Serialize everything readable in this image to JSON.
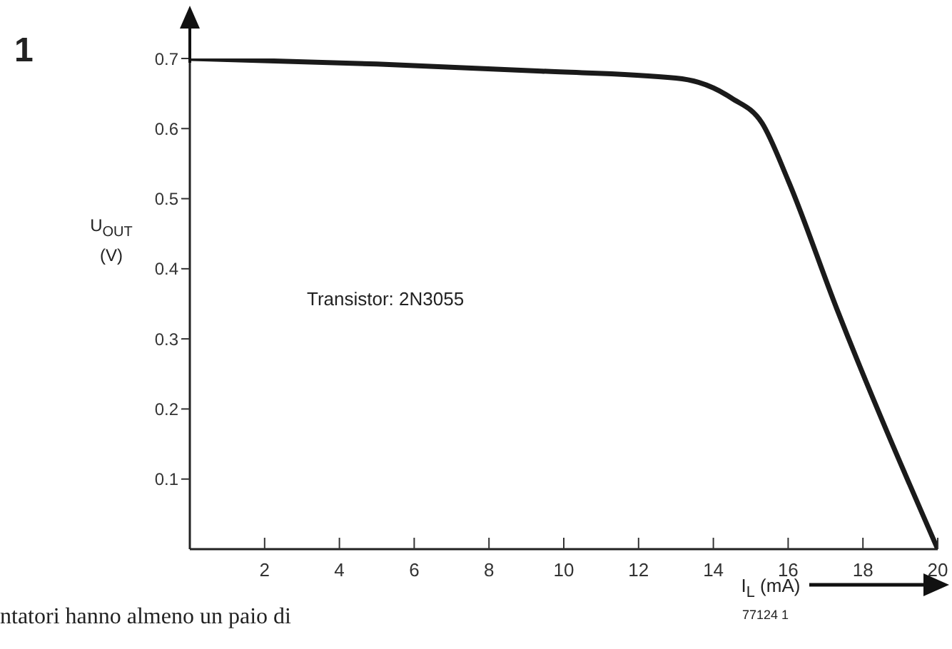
{
  "chart_data": {
    "type": "line",
    "xlabel": "I$_{L}$ (mA)",
    "ylabel": "U$_{OUT}$ (V)",
    "annotations": [
      "1",
      "Transistor: 2N3055",
      "77124 1",
      "ntatori hanno almeno un paio di"
    ],
    "x": [
      0,
      5,
      9.4,
      13,
      13.6,
      14,
      14.5,
      15.3,
      16,
      17.3,
      20
    ],
    "series": [
      {
        "color": "#1a1a1a",
        "values": [
          0.7,
          0.692,
          0.682,
          0.672,
          0.666,
          0.658,
          0.643,
          0.608,
          0.526,
          0.343,
          0
        ]
      }
    ],
    "xlim": [
      0,
      20
    ],
    "xticks": [
      2,
      4,
      6,
      8,
      10,
      12,
      14,
      16,
      18,
      20
    ],
    "ylim": [
      0,
      0.7
    ],
    "yticks": [
      0.1,
      0.2,
      0.3,
      0.4,
      0.5,
      0.6,
      0.7
    ],
    "grid": false,
    "legend": false,
    "marker": "none",
    "line_style": "solid"
  }
}
